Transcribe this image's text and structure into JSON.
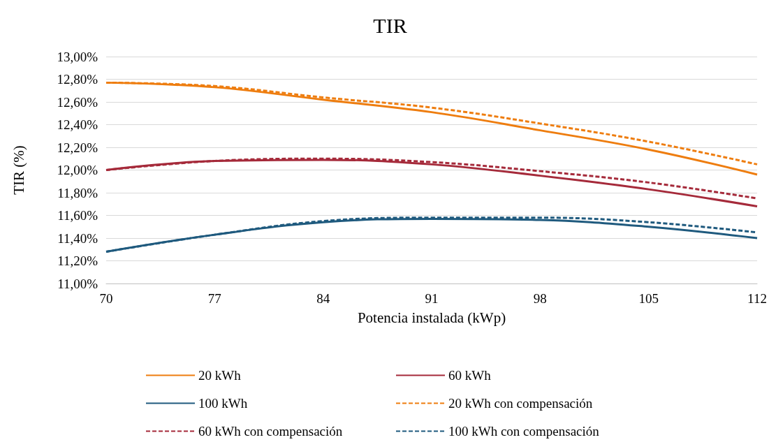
{
  "chart_data": {
    "type": "line",
    "title": "TIR",
    "xlabel": "Potencia instalada (kWp)",
    "ylabel": "TIR (%)",
    "x": [
      70,
      77,
      84,
      91,
      98,
      105,
      112
    ],
    "xlim": [
      70,
      112
    ],
    "xticks": [
      70,
      77,
      84,
      91,
      98,
      105,
      112
    ],
    "ylim": [
      11,
      13
    ],
    "yticks": [
      {
        "value": 11,
        "label": "11,00%"
      },
      {
        "value": 11.2,
        "label": "11,20%"
      },
      {
        "value": 11.4,
        "label": "11,40%"
      },
      {
        "value": 11.6,
        "label": "11,60%"
      },
      {
        "value": 11.8,
        "label": "11,80%"
      },
      {
        "value": 12,
        "label": "12,00%"
      },
      {
        "value": 12.2,
        "label": "12,20%"
      },
      {
        "value": 12.4,
        "label": "12,40%"
      },
      {
        "value": 12.6,
        "label": "12,60%"
      },
      {
        "value": 12.8,
        "label": "12,80%"
      },
      {
        "value": 13,
        "label": "13,00%"
      }
    ],
    "grid": "y",
    "legend": "bottom",
    "marker": "none",
    "series": [
      {
        "name": "20 kWh",
        "color": "#ee7d0f",
        "line_style": "solid",
        "values": [
          12.77,
          12.73,
          12.62,
          12.51,
          12.35,
          12.18,
          11.96
        ]
      },
      {
        "name": "60 kWh",
        "color": "#a52a3a",
        "line_style": "solid",
        "values": [
          12.0,
          12.08,
          12.09,
          12.05,
          11.95,
          11.83,
          11.68
        ]
      },
      {
        "name": "100 kWh",
        "color": "#1f5a7e",
        "line_style": "solid",
        "values": [
          11.28,
          11.43,
          11.54,
          11.57,
          11.56,
          11.5,
          11.4
        ]
      },
      {
        "name": "20 kWh con compensación",
        "color": "#ee7d0f",
        "line_style": "dashed",
        "values": [
          12.77,
          12.74,
          12.64,
          12.55,
          12.41,
          12.25,
          12.05
        ]
      },
      {
        "name": "60 kWh con compensación",
        "color": "#a52a3a",
        "line_style": "dashed",
        "values": [
          12.0,
          12.08,
          12.1,
          12.07,
          11.99,
          11.89,
          11.75
        ]
      },
      {
        "name": "100 kWh con compensación",
        "color": "#1f5a7e",
        "line_style": "dashed",
        "values": [
          11.28,
          11.43,
          11.55,
          11.58,
          11.58,
          11.54,
          11.45
        ]
      }
    ]
  }
}
